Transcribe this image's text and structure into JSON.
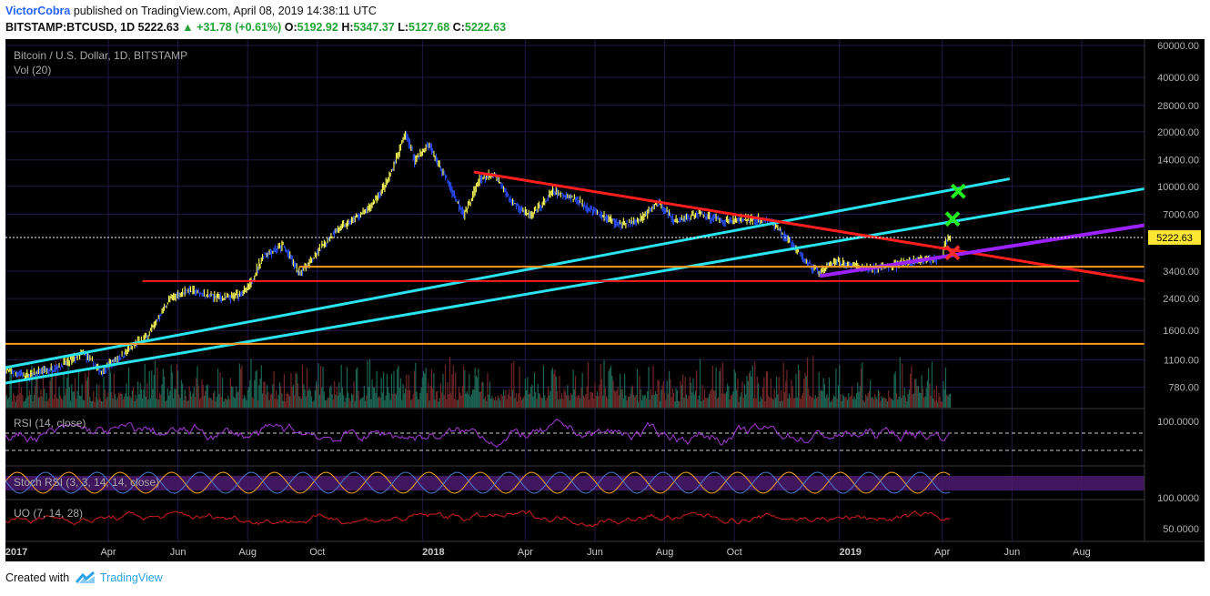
{
  "header": {
    "author": "VictorCobra",
    "published": "published on TradingView.com, April 08, 2019 14:38:11 UTC",
    "symbol": "BITSTAMP:BTCUSD, 1D",
    "last": "5222.63",
    "change": "▲ +31.78 (+0.61%)",
    "o_label": "O:",
    "o_value": "5192.92",
    "h_label": "H:",
    "h_value": "5347.37",
    "l_label": "L:",
    "l_value": "5127.68",
    "c_label": "C:",
    "c_value": "5222.63"
  },
  "chart_data": {
    "type": "line",
    "title": "Bitcoin / U.S. Dollar, 1D, BITSTAMP",
    "volume_label": "Vol (20)",
    "scale": "log",
    "ylim": [
      600,
      65000
    ],
    "y_ticks": [
      "60000.00",
      "40000.00",
      "28000.00",
      "20000.00",
      "14000.00",
      "10000.00",
      "7000.00",
      "5222.63",
      "3400.00",
      "2400.00",
      "1600.00",
      "1100.00",
      "780.00"
    ],
    "last_price": "5222.63",
    "x_ticks": [
      "2017",
      "Apr",
      "Jun",
      "Aug",
      "Oct",
      "2018",
      "Apr",
      "Jun",
      "Aug",
      "Oct",
      "2019",
      "Apr",
      "Jun",
      "Aug"
    ],
    "xlim": [
      "2017-01-01",
      "2019-09-25"
    ],
    "series": [
      {
        "name": "BTCUSD",
        "x": [
          "2017-01-01",
          "2017-01-20",
          "2017-02-15",
          "2017-03-10",
          "2017-03-25",
          "2017-04-15",
          "2017-05-05",
          "2017-05-25",
          "2017-06-10",
          "2017-06-25",
          "2017-07-16",
          "2017-08-01",
          "2017-08-15",
          "2017-09-01",
          "2017-09-15",
          "2017-10-01",
          "2017-10-15",
          "2017-11-01",
          "2017-11-15",
          "2017-12-01",
          "2017-12-17",
          "2017-12-25",
          "2018-01-06",
          "2018-01-20",
          "2018-02-06",
          "2018-02-20",
          "2018-03-05",
          "2018-03-20",
          "2018-04-06",
          "2018-04-25",
          "2018-05-15",
          "2018-06-01",
          "2018-06-24",
          "2018-07-10",
          "2018-07-26",
          "2018-08-10",
          "2018-09-01",
          "2018-09-20",
          "2018-10-10",
          "2018-11-01",
          "2018-11-20",
          "2018-12-01",
          "2018-12-15",
          "2018-12-25",
          "2019-01-10",
          "2019-01-25",
          "2019-02-10",
          "2019-02-28",
          "2019-03-15",
          "2019-04-01",
          "2019-04-03",
          "2019-04-08"
        ],
        "values": [
          970,
          900,
          1000,
          1200,
          950,
          1200,
          1500,
          2400,
          2700,
          2500,
          2400,
          2700,
          4200,
          4700,
          3300,
          4300,
          5600,
          6500,
          7500,
          10500,
          19500,
          14000,
          17000,
          11500,
          7000,
          11000,
          11500,
          8200,
          6800,
          9300,
          8500,
          7200,
          6100,
          6500,
          8200,
          6400,
          7100,
          6400,
          6600,
          6400,
          4800,
          3900,
          3300,
          3800,
          3700,
          3500,
          3600,
          3800,
          3900,
          4100,
          4900,
          5222.63
        ]
      }
    ],
    "volume_ticks": [],
    "indicators": [
      {
        "name": "RSI (14, close)",
        "ticks": [
          "100.0000"
        ]
      },
      {
        "name": "Stoch RSI (3, 3, 14, 14, close)",
        "ticks": [
          "100.0000"
        ]
      },
      {
        "name": "UO (7, 14, 28)",
        "ticks": [
          "50.0000"
        ]
      }
    ],
    "annotations": [
      {
        "type": "trendline",
        "color": "#29e3f0",
        "from": {
          "date": "2017-01-01",
          "price": 820
        },
        "to": {
          "date": "2019-09-25",
          "price": 9700
        }
      },
      {
        "type": "trendline",
        "color": "#29e3f0",
        "from": {
          "date": "2016-12-25",
          "price": 980
        },
        "to": {
          "date": "2019-05-30",
          "price": 11000
        }
      },
      {
        "type": "trendline",
        "color": "#ff1e1e",
        "from": {
          "date": "2018-02-15",
          "price": 12000
        },
        "to": {
          "date": "2019-09-25",
          "price": 3000
        }
      },
      {
        "type": "trendline",
        "color": "#9b22ff",
        "from": {
          "date": "2018-12-15",
          "price": 3200
        },
        "to": {
          "date": "2019-09-25",
          "price": 6100
        }
      },
      {
        "type": "horizontal",
        "color": "#ff1e1e",
        "price": 3000,
        "from": "2017-05-01",
        "to": "2019-07-30"
      },
      {
        "type": "horizontal",
        "color": "#ff9a1e",
        "price": 3600,
        "from": "2017-09-15",
        "to": "2019-09-25"
      },
      {
        "type": "horizontal",
        "color": "#ff9a1e",
        "price": 1350,
        "from": "2016-12-25",
        "to": "2019-09-25"
      },
      {
        "type": "marker",
        "symbol": "x",
        "color": "#22ee22",
        "date": "2019-04-15",
        "price": 9400
      },
      {
        "type": "marker",
        "symbol": "x",
        "color": "#22ee22",
        "date": "2019-04-10",
        "price": 6600
      },
      {
        "type": "marker",
        "symbol": "x",
        "color": "#ff2a2a",
        "date": "2019-04-10",
        "price": 4300
      }
    ],
    "colors": {
      "background": "#000000",
      "grid": "#26164a",
      "up_candle": "#ffff5a",
      "down_candle": "#2a4fff",
      "rsi": "#a63ad8",
      "stoch_k": "#f5a623",
      "stoch_d": "#4a7bd0",
      "uo": "#d11d1d",
      "last_price_label": "#ffe633"
    }
  },
  "footer": {
    "created_with": "Created with",
    "brand": "TradingView"
  }
}
